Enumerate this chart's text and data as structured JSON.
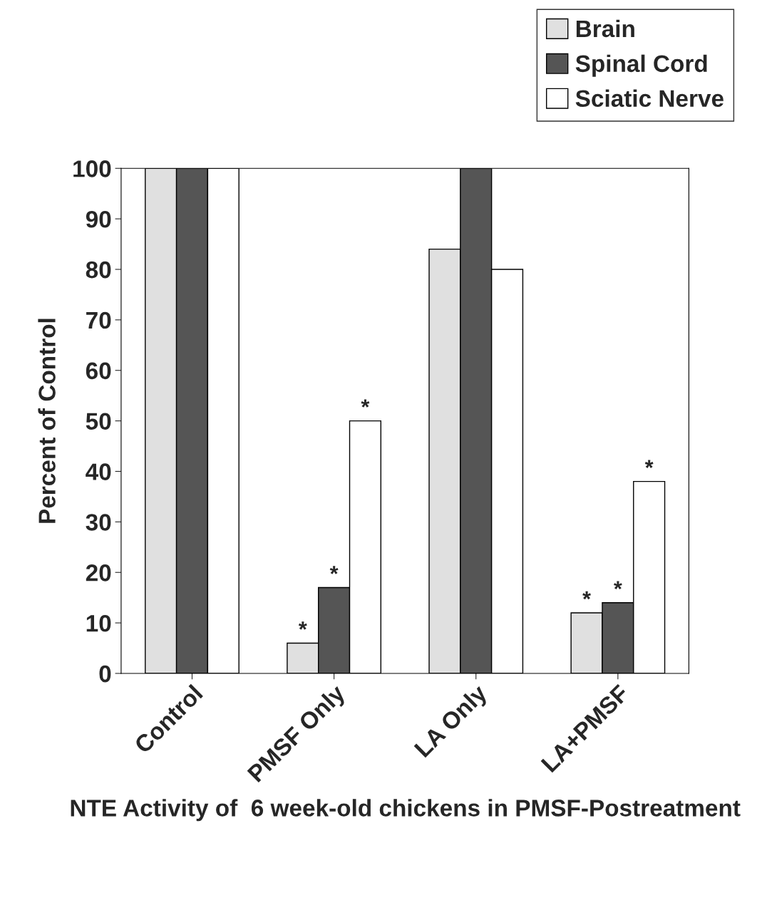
{
  "chart_data": {
    "type": "bar",
    "xlabel": "NTE Activity of  6 week-old chickens in PMSF-Postreatment",
    "ylabel": "Percent of Control",
    "categories": [
      "Control",
      "PMSF Only",
      "LA Only",
      "LA+PMSF"
    ],
    "series": [
      {
        "name": "Brain",
        "color": "#e0e0e0",
        "values": [
          100,
          6,
          84,
          12
        ],
        "value_labels": [
          null,
          "*",
          null,
          "*"
        ]
      },
      {
        "name": "Spinal Cord",
        "color": "#555555",
        "values": [
          100,
          17,
          100,
          14
        ],
        "value_labels": [
          null,
          "*",
          null,
          "*"
        ]
      },
      {
        "name": "Sciatic Nerve",
        "color": "#ffffff",
        "values": [
          100,
          50,
          80,
          38
        ],
        "value_labels": [
          null,
          "*",
          null,
          "*"
        ]
      }
    ],
    "ylim": [
      0,
      100
    ],
    "yticks": [
      0,
      10,
      20,
      30,
      40,
      50,
      60,
      70,
      80,
      90,
      100
    ],
    "grid": false,
    "legend": "top right"
  }
}
